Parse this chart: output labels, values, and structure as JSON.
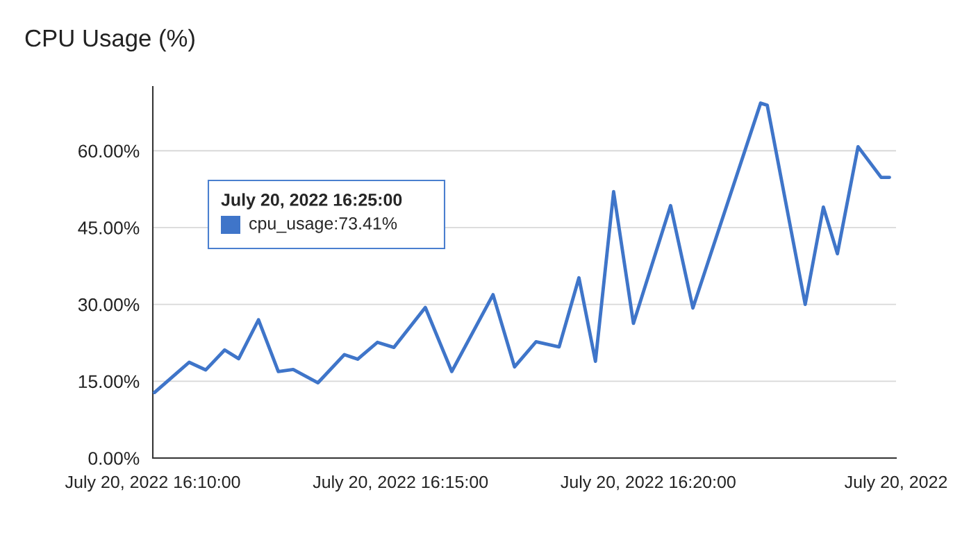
{
  "chart_data": {
    "type": "line",
    "title": "CPU Usage (%)",
    "x": [
      "2022-07-20T16:10:02",
      "2022-07-20T16:10:44",
      "2022-07-20T16:11:04",
      "2022-07-20T16:11:27",
      "2022-07-20T16:11:44",
      "2022-07-20T16:12:08",
      "2022-07-20T16:12:32",
      "2022-07-20T16:12:50",
      "2022-07-20T16:13:20",
      "2022-07-20T16:13:52",
      "2022-07-20T16:14:08",
      "2022-07-20T16:14:32",
      "2022-07-20T16:14:52",
      "2022-07-20T16:15:30",
      "2022-07-20T16:16:02",
      "2022-07-20T16:16:52",
      "2022-07-20T16:17:18",
      "2022-07-20T16:17:44",
      "2022-07-20T16:18:12",
      "2022-07-20T16:18:36",
      "2022-07-20T16:18:56",
      "2022-07-20T16:19:18",
      "2022-07-20T16:19:42",
      "2022-07-20T16:20:27",
      "2022-07-20T16:20:54",
      "2022-07-20T16:22:16",
      "2022-07-20T16:22:24",
      "2022-07-20T16:23:10",
      "2022-07-20T16:23:32",
      "2022-07-20T16:23:49",
      "2022-07-20T16:24:14",
      "2022-07-20T16:24:42",
      "2022-07-20T16:24:52"
    ],
    "series": [
      {
        "color": "#3f75c9",
        "values": [
          12.8,
          18.7,
          17.2,
          21.1,
          19.4,
          27.0,
          16.9,
          17.3,
          14.7,
          20.2,
          19.3,
          22.6,
          21.6,
          29.4,
          16.9,
          31.9,
          17.8,
          22.7,
          21.7,
          35.2,
          18.9,
          52,
          26.3,
          49.3,
          29.3,
          69.3,
          68.9,
          30.0,
          49.0,
          39.9,
          60.8,
          54.8,
          54.8
        ]
      }
    ],
    "xlim": [
      "2022-07-20T16:10",
      "2022-07-20T16:25"
    ],
    "xticks": [
      {
        "value": "2022-07-20T16:10",
        "label": "July 20, 2022 16:10:00"
      },
      {
        "value": "2022-07-20T16:15",
        "label": "July 20, 2022 16:15:00"
      },
      {
        "value": "2022-07-20T16:20",
        "label": "July 20, 2022 16:20:00"
      },
      {
        "value": "2022-07-20T16:25",
        "label": "July 20, 2022"
      }
    ],
    "ylim": [
      0,
      72.5
    ],
    "yticks": [
      {
        "value": 0,
        "label": "0.00%"
      },
      {
        "value": 15,
        "label": "15.00%"
      },
      {
        "value": 30,
        "label": "30.00%"
      },
      {
        "value": 45,
        "label": "45.00%"
      },
      {
        "value": 60,
        "label": "60.00%"
      }
    ],
    "grid": "y",
    "annotations": [
      "July 20, 2022 16:25:00",
      "cpu_usage:73.41%"
    ]
  }
}
